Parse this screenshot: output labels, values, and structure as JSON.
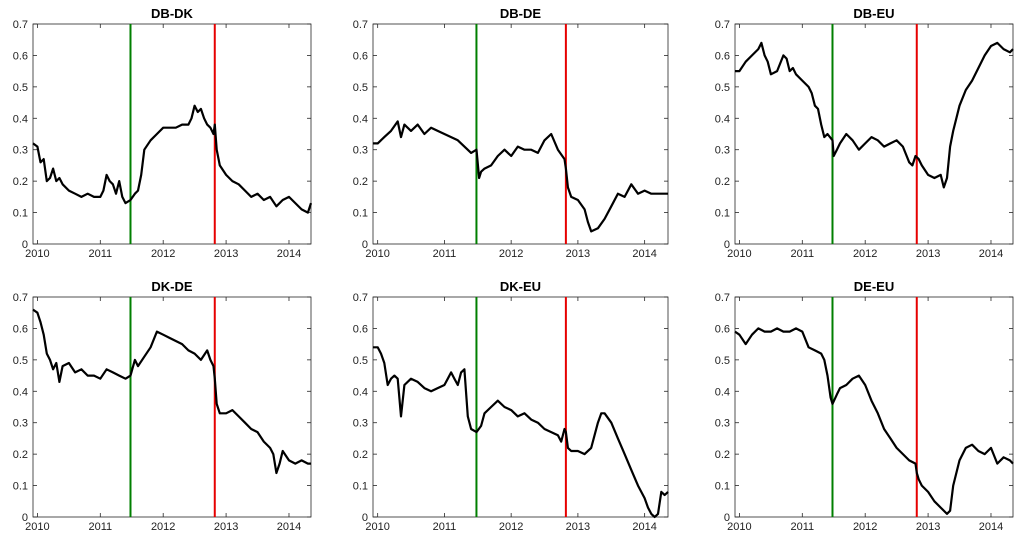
{
  "colors": {
    "series": "#000000",
    "event_green": "#007f00",
    "event_red": "#e60000"
  },
  "chart_data": [
    {
      "type": "line",
      "title": "DB-DK",
      "xlim": [
        2009.93,
        2014.35
      ],
      "ylim": [
        0,
        0.7
      ],
      "xticks": [
        2010,
        2011,
        2012,
        2013,
        2014
      ],
      "yticks": [
        0,
        0.1,
        0.2,
        0.3,
        0.4,
        0.5,
        0.6,
        0.7
      ],
      "vlines": [
        {
          "x": 2011.48,
          "color": "green"
        },
        {
          "x": 2012.82,
          "color": "red"
        }
      ],
      "series": [
        {
          "x": [
            2009.93,
            2010.0,
            2010.05,
            2010.1,
            2010.15,
            2010.2,
            2010.25,
            2010.3,
            2010.35,
            2010.4,
            2010.5,
            2010.6,
            2010.7,
            2010.8,
            2010.9,
            2011.0,
            2011.05,
            2011.1,
            2011.15,
            2011.2,
            2011.25,
            2011.3,
            2011.35,
            2011.4,
            2011.48,
            2011.55,
            2011.6,
            2011.65,
            2011.7,
            2011.8,
            2011.9,
            2012.0,
            2012.1,
            2012.2,
            2012.3,
            2012.4,
            2012.45,
            2012.5,
            2012.55,
            2012.6,
            2012.65,
            2012.7,
            2012.75,
            2012.8,
            2012.82,
            2012.85,
            2012.9,
            2013.0,
            2013.1,
            2013.2,
            2013.3,
            2013.4,
            2013.5,
            2013.6,
            2013.7,
            2013.8,
            2013.9,
            2014.0,
            2014.1,
            2014.2,
            2014.3,
            2014.35
          ],
          "y": [
            0.32,
            0.31,
            0.26,
            0.27,
            0.2,
            0.21,
            0.24,
            0.2,
            0.21,
            0.19,
            0.17,
            0.16,
            0.15,
            0.16,
            0.15,
            0.15,
            0.17,
            0.22,
            0.2,
            0.19,
            0.16,
            0.2,
            0.15,
            0.13,
            0.14,
            0.16,
            0.17,
            0.22,
            0.3,
            0.33,
            0.35,
            0.37,
            0.37,
            0.37,
            0.38,
            0.38,
            0.4,
            0.44,
            0.42,
            0.43,
            0.4,
            0.38,
            0.37,
            0.35,
            0.38,
            0.3,
            0.25,
            0.22,
            0.2,
            0.19,
            0.17,
            0.15,
            0.16,
            0.14,
            0.15,
            0.12,
            0.14,
            0.15,
            0.13,
            0.11,
            0.1,
            0.13
          ]
        }
      ]
    },
    {
      "type": "line",
      "title": "DB-DE",
      "xlim": [
        2009.93,
        2014.35
      ],
      "ylim": [
        0,
        0.7
      ],
      "xticks": [
        2010,
        2011,
        2012,
        2013,
        2014
      ],
      "yticks": [
        0,
        0.1,
        0.2,
        0.3,
        0.4,
        0.5,
        0.6,
        0.7
      ],
      "vlines": [
        {
          "x": 2011.48,
          "color": "green"
        },
        {
          "x": 2012.82,
          "color": "red"
        }
      ],
      "series": [
        {
          "x": [
            2009.93,
            2010.0,
            2010.1,
            2010.2,
            2010.3,
            2010.35,
            2010.4,
            2010.5,
            2010.6,
            2010.7,
            2010.8,
            2010.9,
            2011.0,
            2011.1,
            2011.2,
            2011.3,
            2011.4,
            2011.48,
            2011.52,
            2011.55,
            2011.6,
            2011.7,
            2011.8,
            2011.9,
            2012.0,
            2012.1,
            2012.2,
            2012.3,
            2012.4,
            2012.5,
            2012.6,
            2012.7,
            2012.8,
            2012.82,
            2012.85,
            2012.9,
            2013.0,
            2013.1,
            2013.15,
            2013.2,
            2013.3,
            2013.4,
            2013.5,
            2013.6,
            2013.7,
            2013.8,
            2013.9,
            2014.0,
            2014.1,
            2014.2,
            2014.3,
            2014.35
          ],
          "y": [
            0.32,
            0.32,
            0.34,
            0.36,
            0.39,
            0.34,
            0.38,
            0.36,
            0.38,
            0.35,
            0.37,
            0.36,
            0.35,
            0.34,
            0.33,
            0.31,
            0.29,
            0.3,
            0.21,
            0.23,
            0.24,
            0.25,
            0.28,
            0.3,
            0.28,
            0.31,
            0.3,
            0.3,
            0.29,
            0.33,
            0.35,
            0.3,
            0.27,
            0.24,
            0.18,
            0.15,
            0.14,
            0.11,
            0.07,
            0.04,
            0.05,
            0.08,
            0.12,
            0.16,
            0.15,
            0.19,
            0.16,
            0.17,
            0.16,
            0.16,
            0.16,
            0.16
          ]
        }
      ]
    },
    {
      "type": "line",
      "title": "DB-EU",
      "xlim": [
        2009.93,
        2014.35
      ],
      "ylim": [
        0,
        0.7
      ],
      "xticks": [
        2010,
        2011,
        2012,
        2013,
        2014
      ],
      "yticks": [
        0,
        0.1,
        0.2,
        0.3,
        0.4,
        0.5,
        0.6,
        0.7
      ],
      "vlines": [
        {
          "x": 2011.48,
          "color": "green"
        },
        {
          "x": 2012.82,
          "color": "red"
        }
      ],
      "series": [
        {
          "x": [
            2009.93,
            2010.0,
            2010.1,
            2010.2,
            2010.3,
            2010.35,
            2010.4,
            2010.45,
            2010.5,
            2010.6,
            2010.7,
            2010.75,
            2010.8,
            2010.85,
            2010.9,
            2011.0,
            2011.1,
            2011.15,
            2011.2,
            2011.25,
            2011.3,
            2011.35,
            2011.4,
            2011.48,
            2011.5,
            2011.55,
            2011.6,
            2011.7,
            2011.8,
            2011.9,
            2012.0,
            2012.1,
            2012.2,
            2012.3,
            2012.4,
            2012.5,
            2012.6,
            2012.7,
            2012.75,
            2012.8,
            2012.85,
            2012.9,
            2013.0,
            2013.1,
            2013.2,
            2013.25,
            2013.3,
            2013.35,
            2013.4,
            2013.5,
            2013.6,
            2013.7,
            2013.8,
            2013.9,
            2014.0,
            2014.1,
            2014.2,
            2014.3,
            2014.35
          ],
          "y": [
            0.55,
            0.55,
            0.58,
            0.6,
            0.62,
            0.64,
            0.6,
            0.58,
            0.54,
            0.55,
            0.6,
            0.59,
            0.55,
            0.56,
            0.54,
            0.52,
            0.5,
            0.48,
            0.44,
            0.43,
            0.38,
            0.34,
            0.35,
            0.33,
            0.28,
            0.3,
            0.32,
            0.35,
            0.33,
            0.3,
            0.32,
            0.34,
            0.33,
            0.31,
            0.32,
            0.33,
            0.31,
            0.26,
            0.25,
            0.28,
            0.27,
            0.25,
            0.22,
            0.21,
            0.22,
            0.18,
            0.21,
            0.31,
            0.36,
            0.44,
            0.49,
            0.52,
            0.56,
            0.6,
            0.63,
            0.64,
            0.62,
            0.61,
            0.62
          ]
        }
      ]
    },
    {
      "type": "line",
      "title": "DK-DE",
      "xlim": [
        2009.93,
        2014.35
      ],
      "ylim": [
        0,
        0.7
      ],
      "xticks": [
        2010,
        2011,
        2012,
        2013,
        2014
      ],
      "yticks": [
        0,
        0.1,
        0.2,
        0.3,
        0.4,
        0.5,
        0.6,
        0.7
      ],
      "vlines": [
        {
          "x": 2011.48,
          "color": "green"
        },
        {
          "x": 2012.82,
          "color": "red"
        }
      ],
      "series": [
        {
          "x": [
            2009.93,
            2010.0,
            2010.05,
            2010.1,
            2010.15,
            2010.2,
            2010.25,
            2010.3,
            2010.35,
            2010.4,
            2010.5,
            2010.6,
            2010.7,
            2010.8,
            2010.9,
            2011.0,
            2011.1,
            2011.2,
            2011.3,
            2011.4,
            2011.48,
            2011.55,
            2011.6,
            2011.7,
            2011.8,
            2011.9,
            2012.0,
            2012.1,
            2012.2,
            2012.3,
            2012.4,
            2012.5,
            2012.6,
            2012.7,
            2012.75,
            2012.8,
            2012.82,
            2012.85,
            2012.9,
            2013.0,
            2013.1,
            2013.2,
            2013.3,
            2013.4,
            2013.5,
            2013.6,
            2013.7,
            2013.75,
            2013.8,
            2013.85,
            2013.9,
            2014.0,
            2014.1,
            2014.2,
            2014.3,
            2014.35
          ],
          "y": [
            0.66,
            0.65,
            0.62,
            0.58,
            0.52,
            0.5,
            0.47,
            0.49,
            0.43,
            0.48,
            0.49,
            0.46,
            0.47,
            0.45,
            0.45,
            0.44,
            0.47,
            0.46,
            0.45,
            0.44,
            0.45,
            0.5,
            0.48,
            0.51,
            0.54,
            0.59,
            0.58,
            0.57,
            0.56,
            0.55,
            0.53,
            0.52,
            0.5,
            0.53,
            0.5,
            0.48,
            0.44,
            0.36,
            0.33,
            0.33,
            0.34,
            0.32,
            0.3,
            0.28,
            0.27,
            0.24,
            0.22,
            0.2,
            0.14,
            0.17,
            0.21,
            0.18,
            0.17,
            0.18,
            0.17,
            0.17
          ]
        }
      ]
    },
    {
      "type": "line",
      "title": "DK-EU",
      "xlim": [
        2009.93,
        2014.35
      ],
      "ylim": [
        0,
        0.7
      ],
      "xticks": [
        2010,
        2011,
        2012,
        2013,
        2014
      ],
      "yticks": [
        0,
        0.1,
        0.2,
        0.3,
        0.4,
        0.5,
        0.6,
        0.7
      ],
      "vlines": [
        {
          "x": 2011.48,
          "color": "green"
        },
        {
          "x": 2012.82,
          "color": "red"
        }
      ],
      "series": [
        {
          "x": [
            2009.93,
            2010.0,
            2010.05,
            2010.1,
            2010.15,
            2010.2,
            2010.25,
            2010.3,
            2010.35,
            2010.4,
            2010.5,
            2010.6,
            2010.7,
            2010.8,
            2010.9,
            2011.0,
            2011.05,
            2011.1,
            2011.15,
            2011.2,
            2011.25,
            2011.3,
            2011.35,
            2011.4,
            2011.48,
            2011.55,
            2011.6,
            2011.7,
            2011.8,
            2011.9,
            2012.0,
            2012.1,
            2012.2,
            2012.3,
            2012.4,
            2012.5,
            2012.6,
            2012.7,
            2012.75,
            2012.8,
            2012.82,
            2012.85,
            2012.9,
            2013.0,
            2013.1,
            2013.2,
            2013.3,
            2013.35,
            2013.4,
            2013.5,
            2013.6,
            2013.7,
            2013.8,
            2013.9,
            2014.0,
            2014.05,
            2014.1,
            2014.15,
            2014.2,
            2014.25,
            2014.3,
            2014.35
          ],
          "y": [
            0.54,
            0.54,
            0.52,
            0.49,
            0.42,
            0.44,
            0.45,
            0.44,
            0.32,
            0.42,
            0.44,
            0.43,
            0.41,
            0.4,
            0.41,
            0.42,
            0.44,
            0.46,
            0.44,
            0.42,
            0.46,
            0.47,
            0.32,
            0.28,
            0.27,
            0.29,
            0.33,
            0.35,
            0.37,
            0.35,
            0.34,
            0.32,
            0.33,
            0.31,
            0.3,
            0.28,
            0.27,
            0.26,
            0.24,
            0.28,
            0.27,
            0.22,
            0.21,
            0.21,
            0.2,
            0.22,
            0.3,
            0.33,
            0.33,
            0.3,
            0.25,
            0.2,
            0.15,
            0.1,
            0.06,
            0.03,
            0.01,
            0.0,
            0.01,
            0.08,
            0.07,
            0.08
          ]
        }
      ]
    },
    {
      "type": "line",
      "title": "DE-EU",
      "xlim": [
        2009.93,
        2014.35
      ],
      "ylim": [
        0,
        0.7
      ],
      "xticks": [
        2010,
        2011,
        2012,
        2013,
        2014
      ],
      "yticks": [
        0,
        0.1,
        0.2,
        0.3,
        0.4,
        0.5,
        0.6,
        0.7
      ],
      "vlines": [
        {
          "x": 2011.48,
          "color": "green"
        },
        {
          "x": 2012.82,
          "color": "red"
        }
      ],
      "series": [
        {
          "x": [
            2009.93,
            2010.0,
            2010.1,
            2010.2,
            2010.3,
            2010.4,
            2010.5,
            2010.6,
            2010.7,
            2010.8,
            2010.9,
            2011.0,
            2011.1,
            2011.2,
            2011.3,
            2011.35,
            2011.4,
            2011.45,
            2011.48,
            2011.55,
            2011.6,
            2011.7,
            2011.8,
            2011.9,
            2012.0,
            2012.1,
            2012.2,
            2012.3,
            2012.4,
            2012.5,
            2012.6,
            2012.7,
            2012.8,
            2012.82,
            2012.85,
            2012.9,
            2013.0,
            2013.1,
            2013.2,
            2013.3,
            2013.35,
            2013.4,
            2013.5,
            2013.6,
            2013.7,
            2013.8,
            2013.9,
            2014.0,
            2014.1,
            2014.2,
            2014.3,
            2014.35
          ],
          "y": [
            0.59,
            0.58,
            0.55,
            0.58,
            0.6,
            0.59,
            0.59,
            0.6,
            0.59,
            0.59,
            0.6,
            0.59,
            0.54,
            0.53,
            0.52,
            0.5,
            0.45,
            0.38,
            0.36,
            0.39,
            0.41,
            0.42,
            0.44,
            0.45,
            0.42,
            0.37,
            0.33,
            0.28,
            0.25,
            0.22,
            0.2,
            0.18,
            0.17,
            0.14,
            0.12,
            0.1,
            0.08,
            0.05,
            0.03,
            0.01,
            0.02,
            0.1,
            0.18,
            0.22,
            0.23,
            0.21,
            0.2,
            0.22,
            0.17,
            0.19,
            0.18,
            0.17
          ]
        }
      ]
    }
  ]
}
